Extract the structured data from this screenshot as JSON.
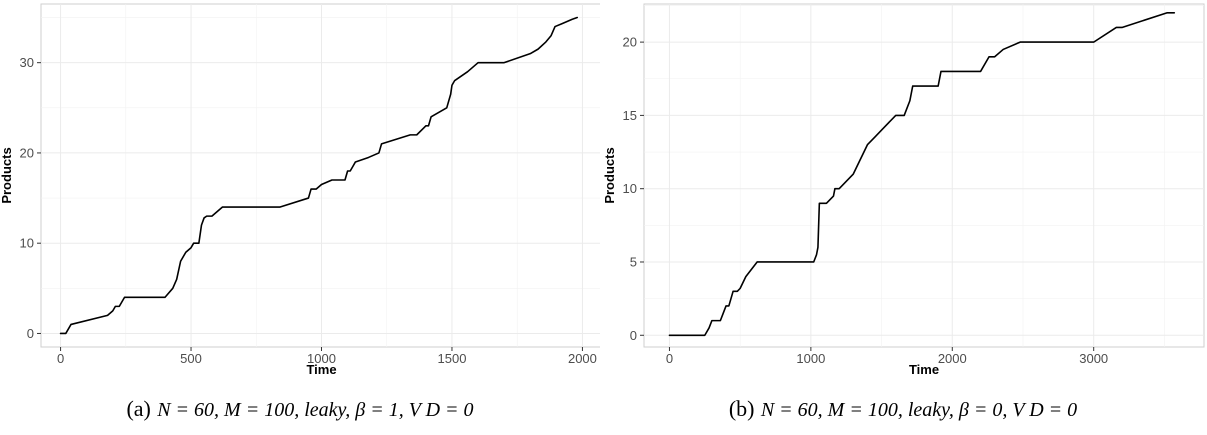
{
  "chart_data": [
    {
      "type": "line",
      "xlabel": "Time",
      "ylabel": "Products",
      "xlim": [
        -75,
        2075
      ],
      "ylim": [
        -1.5,
        36.5
      ],
      "xticks": [
        0,
        500,
        1000,
        1500,
        2000
      ],
      "yticks": [
        0,
        10,
        20,
        30
      ],
      "grid": true,
      "caption": {
        "label": "(a)",
        "text": "N = 60,  M = 100,  leaky,  β = 1,  V D = 0"
      },
      "series": [
        {
          "x": [
            0,
            20,
            40,
            180,
            200,
            210,
            225,
            245,
            400,
            430,
            445,
            460,
            480,
            500,
            510,
            520,
            530,
            540,
            550,
            560,
            580,
            600,
            620,
            840,
            950,
            960,
            980,
            1000,
            1040,
            1080,
            1090,
            1100,
            1110,
            1120,
            1130,
            1180,
            1220,
            1230,
            1340,
            1365,
            1400,
            1410,
            1420,
            1450,
            1480,
            1495,
            1500,
            1510,
            1560,
            1600,
            1660,
            1700,
            1800,
            1830,
            1860,
            1880,
            1895,
            1920,
            1960,
            1980
          ],
          "y": [
            0,
            0,
            1,
            2,
            2.5,
            3,
            3,
            4,
            4,
            5,
            6,
            8,
            9,
            9.5,
            10,
            10,
            10,
            12,
            12.8,
            13,
            13,
            13.5,
            14,
            14,
            15,
            16,
            16,
            16.5,
            17,
            17,
            17,
            18,
            18,
            18.5,
            19,
            19.5,
            20,
            21,
            22,
            22,
            23,
            23,
            24,
            24.5,
            25,
            26.5,
            27.5,
            28,
            29,
            30,
            30,
            30,
            31,
            31.5,
            32.3,
            33,
            34,
            34.3,
            34.8,
            35
          ]
        }
      ]
    },
    {
      "type": "line",
      "xlabel": "Time",
      "ylabel": "Products",
      "xlim": [
        -180,
        3780
      ],
      "ylim": [
        -0.8,
        22.6
      ],
      "xticks": [
        0,
        1000,
        2000,
        3000
      ],
      "yticks": [
        0,
        5,
        10,
        15,
        20
      ],
      "grid": true,
      "caption": {
        "label": "(b)",
        "text": "N = 60,  M = 100,  leaky,  β = 0,  V D = 0"
      },
      "series": [
        {
          "x": [
            0,
            250,
            280,
            300,
            360,
            380,
            400,
            420,
            450,
            480,
            500,
            540,
            620,
            1020,
            1040,
            1050,
            1060,
            1110,
            1160,
            1170,
            1200,
            1300,
            1400,
            1450,
            1500,
            1600,
            1660,
            1680,
            1700,
            1720,
            1740,
            1900,
            1910,
            1920,
            2200,
            2260,
            2300,
            2360,
            2480,
            2500,
            3000,
            3160,
            3200,
            3520,
            3570
          ],
          "y": [
            0,
            0,
            0.5,
            1,
            1,
            1.5,
            2,
            2,
            3,
            3,
            3.2,
            4,
            5,
            5,
            5.5,
            6,
            9,
            9,
            9.5,
            10,
            10,
            11,
            13,
            13.5,
            14,
            15,
            15,
            15.5,
            16,
            17,
            17,
            17,
            17.5,
            18,
            18,
            19,
            19,
            19.5,
            20,
            20,
            20,
            21,
            21,
            22,
            22
          ]
        }
      ]
    }
  ]
}
